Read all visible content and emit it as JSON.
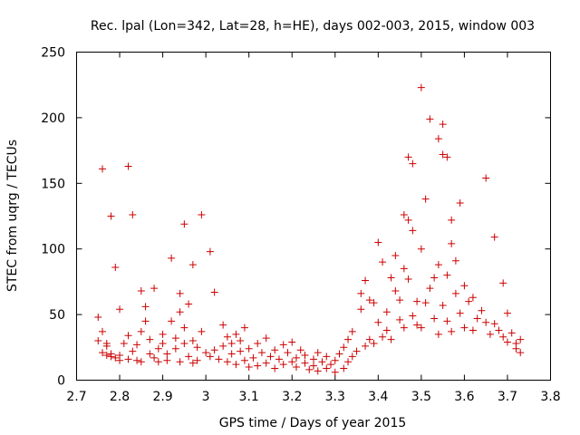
{
  "chart_data": {
    "type": "scatter",
    "title": "Rec. lpal (Lon=342, Lat=28, h=HE), days 002-003, 2015, window 003",
    "xlabel": "GPS time / Days of year 2015",
    "ylabel": "STEC from uqrg / TECUs",
    "xlim": [
      2.7,
      3.8
    ],
    "ylim": [
      0,
      250
    ],
    "x_ticks": [
      2.7,
      2.8,
      2.9,
      3.0,
      3.1,
      3.2,
      3.3,
      3.4,
      3.5,
      3.6,
      3.7,
      3.8
    ],
    "x_tick_labels": [
      "2.7",
      "2.8",
      "2.9",
      "3",
      "3.1",
      "3.2",
      "3.3",
      "3.4",
      "3.5",
      "3.6",
      "3.7",
      "3.8"
    ],
    "y_ticks": [
      0,
      50,
      100,
      150,
      200,
      250
    ],
    "y_tick_labels": [
      "0",
      "50",
      "100",
      "150",
      "200",
      "250"
    ],
    "grid": false,
    "legend": "none",
    "marker": "plus",
    "color": "#cc0000",
    "series": [
      {
        "name": "STEC",
        "points": [
          [
            2.75,
            48
          ],
          [
            2.75,
            30
          ],
          [
            2.76,
            21
          ],
          [
            2.76,
            37
          ],
          [
            2.76,
            161
          ],
          [
            2.77,
            28
          ],
          [
            2.77,
            19
          ],
          [
            2.77,
            26
          ],
          [
            2.78,
            125
          ],
          [
            2.78,
            20
          ],
          [
            2.78,
            18
          ],
          [
            2.79,
            86
          ],
          [
            2.79,
            17
          ],
          [
            2.8,
            54
          ],
          [
            2.8,
            15
          ],
          [
            2.8,
            19
          ],
          [
            2.81,
            28
          ],
          [
            2.82,
            163
          ],
          [
            2.82,
            34
          ],
          [
            2.82,
            16
          ],
          [
            2.83,
            126
          ],
          [
            2.83,
            22
          ],
          [
            2.84,
            27
          ],
          [
            2.84,
            15
          ],
          [
            2.85,
            68
          ],
          [
            2.85,
            37
          ],
          [
            2.85,
            14
          ],
          [
            2.86,
            45
          ],
          [
            2.86,
            56
          ],
          [
            2.87,
            20
          ],
          [
            2.87,
            31
          ],
          [
            2.88,
            70
          ],
          [
            2.88,
            17
          ],
          [
            2.89,
            24
          ],
          [
            2.89,
            14
          ],
          [
            2.9,
            28
          ],
          [
            2.9,
            35
          ],
          [
            2.91,
            20
          ],
          [
            2.91,
            15
          ],
          [
            2.92,
            93
          ],
          [
            2.92,
            45
          ],
          [
            2.93,
            32
          ],
          [
            2.93,
            24
          ],
          [
            2.94,
            66
          ],
          [
            2.94,
            52
          ],
          [
            2.94,
            14
          ],
          [
            2.95,
            119
          ],
          [
            2.95,
            40
          ],
          [
            2.95,
            28
          ],
          [
            2.96,
            58
          ],
          [
            2.96,
            18
          ],
          [
            2.97,
            88
          ],
          [
            2.97,
            30
          ],
          [
            2.97,
            13
          ],
          [
            2.98,
            25
          ],
          [
            2.98,
            15
          ],
          [
            2.99,
            126
          ],
          [
            2.99,
            37
          ],
          [
            3.0,
            21
          ],
          [
            3.01,
            98
          ],
          [
            3.01,
            18
          ],
          [
            3.02,
            23
          ],
          [
            3.02,
            67
          ],
          [
            3.03,
            16
          ],
          [
            3.04,
            42
          ],
          [
            3.04,
            26
          ],
          [
            3.05,
            33
          ],
          [
            3.05,
            14
          ],
          [
            3.06,
            28
          ],
          [
            3.06,
            20
          ],
          [
            3.07,
            35
          ],
          [
            3.07,
            12
          ],
          [
            3.08,
            22
          ],
          [
            3.08,
            30
          ],
          [
            3.09,
            40
          ],
          [
            3.09,
            15
          ],
          [
            3.1,
            24
          ],
          [
            3.1,
            10
          ],
          [
            3.11,
            17
          ],
          [
            3.12,
            28
          ],
          [
            3.12,
            11
          ],
          [
            3.13,
            21
          ],
          [
            3.14,
            32
          ],
          [
            3.14,
            13
          ],
          [
            3.15,
            18
          ],
          [
            3.16,
            9
          ],
          [
            3.16,
            23
          ],
          [
            3.17,
            16
          ],
          [
            3.18,
            27
          ],
          [
            3.18,
            12
          ],
          [
            3.19,
            21
          ],
          [
            3.2,
            14
          ],
          [
            3.2,
            29
          ],
          [
            3.21,
            17
          ],
          [
            3.21,
            10
          ],
          [
            3.22,
            23
          ],
          [
            3.23,
            13
          ],
          [
            3.23,
            19
          ],
          [
            3.24,
            8
          ],
          [
            3.25,
            16
          ],
          [
            3.25,
            11
          ],
          [
            3.26,
            21
          ],
          [
            3.26,
            7
          ],
          [
            3.27,
            14
          ],
          [
            3.28,
            9
          ],
          [
            3.28,
            18
          ],
          [
            3.29,
            12
          ],
          [
            3.3,
            6
          ],
          [
            3.3,
            15
          ],
          [
            3.31,
            20
          ],
          [
            3.32,
            9
          ],
          [
            3.32,
            25
          ],
          [
            3.33,
            31
          ],
          [
            3.33,
            14
          ],
          [
            3.34,
            37
          ],
          [
            3.34,
            18
          ],
          [
            3.35,
            22
          ],
          [
            3.36,
            54
          ],
          [
            3.36,
            66
          ],
          [
            3.37,
            26
          ],
          [
            3.37,
            76
          ],
          [
            3.38,
            31
          ],
          [
            3.38,
            61
          ],
          [
            3.39,
            59
          ],
          [
            3.39,
            28
          ],
          [
            3.4,
            105
          ],
          [
            3.4,
            44
          ],
          [
            3.41,
            90
          ],
          [
            3.41,
            33
          ],
          [
            3.42,
            52
          ],
          [
            3.42,
            38
          ],
          [
            3.43,
            78
          ],
          [
            3.43,
            31
          ],
          [
            3.44,
            95
          ],
          [
            3.44,
            68
          ],
          [
            3.45,
            61
          ],
          [
            3.45,
            46
          ],
          [
            3.46,
            126
          ],
          [
            3.46,
            85
          ],
          [
            3.46,
            40
          ],
          [
            3.47,
            170
          ],
          [
            3.47,
            122
          ],
          [
            3.47,
            77
          ],
          [
            3.48,
            165
          ],
          [
            3.48,
            114
          ],
          [
            3.48,
            49
          ],
          [
            3.49,
            60
          ],
          [
            3.49,
            42
          ],
          [
            3.5,
            223
          ],
          [
            3.5,
            100
          ],
          [
            3.5,
            40
          ],
          [
            3.51,
            138
          ],
          [
            3.51,
            59
          ],
          [
            3.52,
            199
          ],
          [
            3.52,
            70
          ],
          [
            3.53,
            78
          ],
          [
            3.53,
            47
          ],
          [
            3.54,
            184
          ],
          [
            3.54,
            88
          ],
          [
            3.54,
            35
          ],
          [
            3.55,
            195
          ],
          [
            3.55,
            172
          ],
          [
            3.55,
            57
          ],
          [
            3.56,
            170
          ],
          [
            3.56,
            80
          ],
          [
            3.56,
            45
          ],
          [
            3.57,
            122
          ],
          [
            3.57,
            104
          ],
          [
            3.57,
            37
          ],
          [
            3.58,
            91
          ],
          [
            3.58,
            66
          ],
          [
            3.59,
            135
          ],
          [
            3.59,
            51
          ],
          [
            3.6,
            72
          ],
          [
            3.6,
            40
          ],
          [
            3.61,
            60
          ],
          [
            3.62,
            63
          ],
          [
            3.62,
            38
          ],
          [
            3.63,
            47
          ],
          [
            3.64,
            53
          ],
          [
            3.65,
            154
          ],
          [
            3.65,
            44
          ],
          [
            3.66,
            35
          ],
          [
            3.67,
            109
          ],
          [
            3.67,
            43
          ],
          [
            3.68,
            38
          ],
          [
            3.69,
            74
          ],
          [
            3.69,
            33
          ],
          [
            3.7,
            51
          ],
          [
            3.7,
            29
          ],
          [
            3.71,
            36
          ],
          [
            3.72,
            28
          ],
          [
            3.72,
            24
          ],
          [
            3.73,
            31
          ],
          [
            3.73,
            21
          ]
        ]
      }
    ]
  }
}
